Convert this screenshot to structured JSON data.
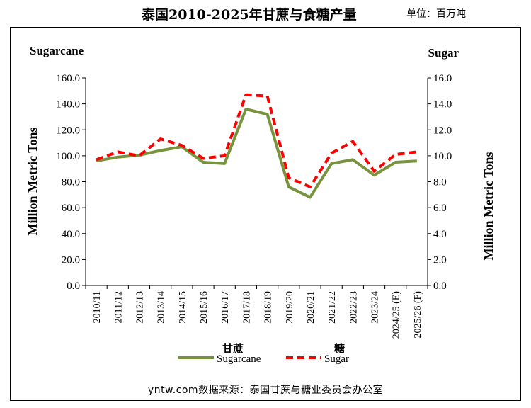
{
  "title": "泰国2010-2025年甘蔗与食糖产量",
  "unit_label": "单位：百万吨",
  "footer": "yntw.com数据来源：泰国甘蔗与糖业委员会办公室",
  "chart_data": {
    "type": "line",
    "categories": [
      "2010/11",
      "2011/12",
      "2012/13",
      "2013/14",
      "2014/15",
      "2015/16",
      "2016/17",
      "2017/18",
      "2018/19",
      "2019/20",
      "2020/21",
      "2021/22",
      "2022/23",
      "2023/24",
      "2024/25 (E)",
      "2025/26 (F)"
    ],
    "left_axis": {
      "top_label": "Sugarcane",
      "title": "Million Metric Tons",
      "range": [
        0,
        160
      ],
      "ticks": [
        "0.0",
        "20.0",
        "40.0",
        "60.0",
        "80.0",
        "100.0",
        "120.0",
        "140.0",
        "160.0"
      ]
    },
    "right_axis": {
      "top_label": "Sugar",
      "title": "Million Metric Tons",
      "range": [
        0,
        16
      ],
      "ticks": [
        "0.0",
        "2.0",
        "4.0",
        "6.0",
        "8.0",
        "10.0",
        "12.0",
        "14.0",
        "16.0"
      ]
    },
    "series": [
      {
        "name": "Sugarcane",
        "legend_cn": "甘蔗",
        "axis": "left",
        "color": "#77933C",
        "style": "solid",
        "values": [
          96,
          99,
          100.5,
          104,
          107,
          95,
          94,
          136,
          132,
          76,
          68,
          94,
          97,
          85,
          95,
          96
        ]
      },
      {
        "name": "Sugar",
        "legend_cn": "糖",
        "axis": "right",
        "color": "#FF0000",
        "style": "dashed",
        "values": [
          9.7,
          10.3,
          10.0,
          11.3,
          10.8,
          9.8,
          10.0,
          14.7,
          14.6,
          8.3,
          7.6,
          10.2,
          11.1,
          8.8,
          10.1,
          10.3
        ]
      }
    ],
    "grid": false,
    "legend": "bottom"
  }
}
